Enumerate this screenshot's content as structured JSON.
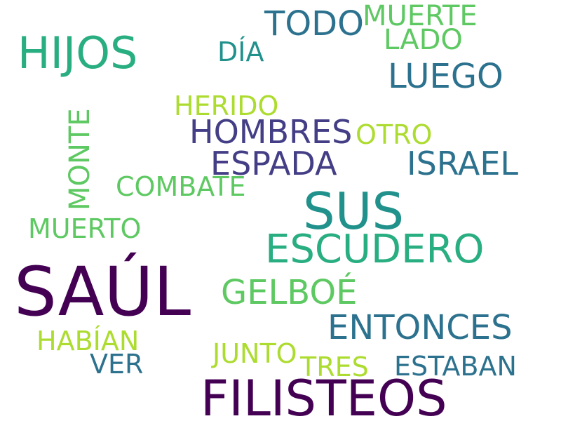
{
  "palette": {
    "dark_purple": "#440154",
    "indigo": "#433e85",
    "blue": "#2c728e",
    "teal": "#21918c",
    "green": "#28ae80",
    "light_green": "#5ec962",
    "yellow_green": "#addc30",
    "background": "#ffffff"
  },
  "words": {
    "saul": {
      "text": "SAÚL",
      "color": "#440154"
    },
    "filisteos": {
      "text": "FILISTEOS",
      "color": "#440154"
    },
    "sus": {
      "text": "SUS",
      "color": "#21918c"
    },
    "escudero": {
      "text": "ESCUDERO",
      "color": "#28ae80"
    },
    "hijos": {
      "text": "HIJOS",
      "color": "#28ae80"
    },
    "entonces": {
      "text": "ENTONCES",
      "color": "#2c728e"
    },
    "gelboe": {
      "text": "GELBOÉ",
      "color": "#5ec962"
    },
    "hombres": {
      "text": "HOMBRES",
      "color": "#433e85"
    },
    "espada": {
      "text": "ESPADA",
      "color": "#433e85"
    },
    "israel": {
      "text": "ISRAEL",
      "color": "#2c728e"
    },
    "luego": {
      "text": "LUEGO",
      "color": "#2c728e"
    },
    "todo": {
      "text": "TODO",
      "color": "#2c728e"
    },
    "muerte": {
      "text": "MUERTE",
      "color": "#5ec962"
    },
    "lado": {
      "text": "LADO",
      "color": "#5ec962"
    },
    "dia": {
      "text": "DÍA",
      "color": "#21918c"
    },
    "herido": {
      "text": "HERIDO",
      "color": "#addc30"
    },
    "otro": {
      "text": "OTRO",
      "color": "#addc30"
    },
    "monte": {
      "text": "MONTE",
      "color": "#5ec962"
    },
    "combate": {
      "text": "COMBATE",
      "color": "#5ec962"
    },
    "muerto": {
      "text": "MUERTO",
      "color": "#5ec962"
    },
    "habian": {
      "text": "HABÍAN",
      "color": "#addc30"
    },
    "ver": {
      "text": "VER",
      "color": "#2c728e"
    },
    "junto": {
      "text": "JUNTO",
      "color": "#addc30"
    },
    "tres": {
      "text": "TRES",
      "color": "#addc30"
    },
    "estaban": {
      "text": "ESTABAN",
      "color": "#2c728e"
    }
  }
}
